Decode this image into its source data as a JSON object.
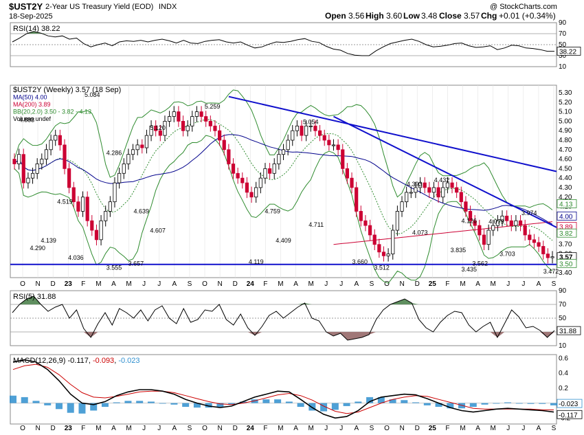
{
  "header": {
    "symbol": "$UST2Y",
    "name": "2-Year US Treasury Yield (EOD)",
    "exchange": "INDX",
    "date": "18-Sep-2025",
    "open_label": "Open",
    "open": "3.56",
    "high_label": "High",
    "high": "3.60",
    "low_label": "Low",
    "low": "3.48",
    "close_label": "Close",
    "close": "3.57",
    "chg_label": "Chg",
    "chg": "+0.01 (+0.34%)",
    "watermark": "@ StockCharts.com"
  },
  "colors": {
    "up": "#000000",
    "down": "#cc0033",
    "ma50": "#00008b",
    "ma200": "#cc0033",
    "bb": "#2e8b2e",
    "trend": "#1010cc",
    "rsi_fill": "#5f8f5f",
    "rsi_low_fill": "#a07878",
    "macd_hist": "#2f8fcf"
  },
  "chart_data": [
    {
      "type": "line",
      "panel": "RSI(14)",
      "legend": "RSI(14) 38.22",
      "ylim": [
        10,
        90
      ],
      "y_ticks": [
        "90",
        "70",
        "50",
        "30",
        "10"
      ],
      "reference_lines": [
        70,
        50,
        30
      ],
      "last_value_label": "38.22",
      "values": [
        55,
        62,
        70,
        74,
        71,
        66,
        64,
        66,
        60,
        62,
        52,
        46,
        50,
        53,
        48,
        55,
        57,
        56,
        58,
        55,
        58,
        60,
        57,
        53,
        58,
        53,
        52,
        56,
        58,
        59,
        55,
        53,
        55,
        49,
        44,
        46,
        51,
        55,
        54,
        56,
        59,
        61,
        56,
        54,
        47,
        42,
        40,
        34,
        31,
        30,
        30,
        39,
        46,
        52,
        55,
        58,
        60,
        56,
        50,
        46,
        47,
        49,
        52,
        53,
        48,
        45,
        46,
        48,
        41,
        44,
        49,
        48,
        44,
        43,
        41,
        38,
        38
      ]
    },
    {
      "type": "candlestick",
      "panel": "price",
      "legend": [
        "$UST2Y (Weekly) 3.57 (18 Sep)",
        "MA(50) 4.00",
        "MA(200) 3.89",
        "BB(20,2.0) 3.50 - 3.82 - 4.13",
        "Volume undef"
      ],
      "x_ticks": [
        "O",
        "N",
        "D",
        "23",
        "F",
        "M",
        "A",
        "M",
        "J",
        "J",
        "A",
        "S",
        "O",
        "N",
        "D",
        "24",
        "F",
        "M",
        "A",
        "M",
        "J",
        "J",
        "A",
        "S",
        "O",
        "N",
        "D",
        "25",
        "F",
        "M",
        "A",
        "M",
        "J",
        "J",
        "A",
        "S"
      ],
      "ylim": [
        3.35,
        5.38
      ],
      "y_ticks": [
        "5.30",
        "5.20",
        "5.10",
        "5.00",
        "4.90",
        "4.80",
        "4.70",
        "4.60",
        "4.50",
        "4.40",
        "4.30",
        "4.20",
        "4.10",
        "4.00",
        "3.90",
        "3.80",
        "3.70",
        "3.60",
        "3.50",
        "3.40"
      ],
      "close": [
        4.55,
        4.65,
        4.35,
        4.4,
        4.45,
        4.55,
        4.6,
        4.7,
        4.8,
        4.85,
        4.75,
        4.5,
        4.3,
        4.15,
        4.05,
        4.2,
        3.95,
        3.85,
        3.75,
        3.95,
        4.05,
        4.15,
        4.35,
        4.45,
        4.55,
        4.65,
        4.7,
        4.75,
        4.72,
        4.85,
        4.95,
        4.9,
        4.85,
        5.0,
        5.05,
        5.1,
        5.0,
        4.9,
        4.95,
        5.05,
        5.1,
        5.05,
        5.0,
        4.95,
        4.9,
        4.8,
        4.7,
        4.55,
        4.45,
        4.4,
        4.35,
        4.25,
        4.2,
        4.3,
        4.4,
        4.5,
        4.45,
        4.55,
        4.65,
        4.7,
        4.8,
        4.9,
        4.95,
        4.85,
        4.95,
        4.95,
        4.9,
        4.85,
        4.8,
        4.75,
        4.75,
        4.7,
        4.5,
        4.4,
        4.3,
        4.05,
        3.95,
        3.9,
        3.8,
        3.7,
        3.62,
        3.58,
        3.6,
        3.85,
        4.05,
        4.15,
        4.25,
        4.25,
        4.3,
        4.35,
        4.3,
        4.25,
        4.3,
        4.2,
        4.3,
        4.35,
        4.3,
        4.25,
        4.15,
        4.05,
        3.95,
        3.9,
        3.8,
        3.7,
        3.85,
        3.9,
        3.95,
        4.0,
        3.95,
        3.9,
        3.95,
        3.9,
        3.8,
        3.75,
        3.72,
        3.68,
        3.6,
        3.56,
        3.57
      ],
      "max_label": "5.259",
      "last_value_label": "3.57",
      "annotations": [
        {
          "text": "4.883"
        },
        {
          "text": "4.290"
        },
        {
          "text": "4.139"
        },
        {
          "text": "4.519"
        },
        {
          "text": "4.036"
        },
        {
          "text": "5.084"
        },
        {
          "text": "4.286"
        },
        {
          "text": "3.555"
        },
        {
          "text": "3.657"
        },
        {
          "text": "4.639"
        },
        {
          "text": "5.120"
        },
        {
          "text": "4.607"
        },
        {
          "text": "5.259"
        },
        {
          "text": "4.759"
        },
        {
          "text": "4.409"
        },
        {
          "text": "4.119"
        },
        {
          "text": "5.054"
        },
        {
          "text": "4.711"
        },
        {
          "text": "3.660"
        },
        {
          "text": "3.512"
        },
        {
          "text": "4.393"
        },
        {
          "text": "4.432"
        },
        {
          "text": "4.073"
        },
        {
          "text": "4.126"
        },
        {
          "text": "4.079"
        },
        {
          "text": "3.974"
        },
        {
          "text": "3.835"
        },
        {
          "text": "3.703"
        },
        {
          "text": "3.562"
        },
        {
          "text": "3.435"
        },
        {
          "text": "3.472"
        }
      ],
      "right_labels": [
        "4.13",
        "4.00",
        "3.89",
        "3.82",
        "3.57",
        "3.50"
      ],
      "support_level": 3.49
    },
    {
      "type": "line",
      "panel": "RSI(5)",
      "legend": "RSI(5) 31.88",
      "ylim": [
        10,
        90
      ],
      "y_ticks": [
        "90",
        "70",
        "50",
        "30",
        "10"
      ],
      "reference_lines": [
        70,
        50,
        30
      ],
      "last_value_label": "31.88",
      "values": [
        58,
        70,
        78,
        82,
        70,
        60,
        66,
        70,
        50,
        62,
        35,
        22,
        42,
        58,
        40,
        64,
        58,
        50,
        62,
        46,
        62,
        68,
        50,
        42,
        64,
        44,
        48,
        62,
        60,
        70,
        48,
        40,
        56,
        36,
        25,
        38,
        54,
        60,
        50,
        58,
        66,
        72,
        50,
        46,
        30,
        24,
        28,
        18,
        20,
        22,
        26,
        48,
        62,
        70,
        74,
        78,
        72,
        48,
        36,
        30,
        44,
        54,
        60,
        58,
        40,
        30,
        38,
        44,
        22,
        42,
        62,
        52,
        36,
        38,
        32,
        22,
        32
      ]
    },
    {
      "type": "line",
      "panel": "MACD",
      "legend_prefix": "MACD(12,26,9)",
      "legend_macd": "-0.117",
      "legend_signal": "-0.093",
      "legend_hist": "-0.023",
      "ylim": [
        -0.28,
        0.65
      ],
      "y_ticks": [
        "0.6",
        "0.4",
        "0.2",
        "0.0",
        "-0.2"
      ],
      "right_labels": [
        "-0.023",
        "-0.117"
      ],
      "macd": [
        0.55,
        0.58,
        0.55,
        0.45,
        0.3,
        0.12,
        0.0,
        -0.02,
        0.02,
        0.1,
        0.15,
        0.18,
        0.18,
        0.16,
        0.12,
        0.05,
        0.0,
        -0.04,
        -0.06,
        -0.04,
        0.02,
        0.08,
        0.12,
        0.16,
        0.15,
        0.05,
        -0.06,
        -0.15,
        -0.2,
        -0.18,
        -0.1,
        0.02,
        0.08,
        0.1,
        0.12,
        0.11,
        0.06,
        0.0,
        -0.06,
        -0.1,
        -0.12,
        -0.1,
        -0.08,
        -0.07,
        -0.08,
        -0.09,
        -0.1,
        -0.12
      ],
      "signal": [
        0.45,
        0.5,
        0.52,
        0.48,
        0.38,
        0.25,
        0.14,
        0.08,
        0.07,
        0.09,
        0.12,
        0.15,
        0.16,
        0.16,
        0.14,
        0.1,
        0.06,
        0.02,
        -0.01,
        -0.02,
        0.0,
        0.03,
        0.07,
        0.11,
        0.13,
        0.1,
        0.04,
        -0.04,
        -0.11,
        -0.14,
        -0.12,
        -0.06,
        0.0,
        0.05,
        0.08,
        0.1,
        0.09,
        0.05,
        0.01,
        -0.03,
        -0.07,
        -0.08,
        -0.08,
        -0.08,
        -0.08,
        -0.08,
        -0.09,
        -0.09
      ]
    }
  ]
}
